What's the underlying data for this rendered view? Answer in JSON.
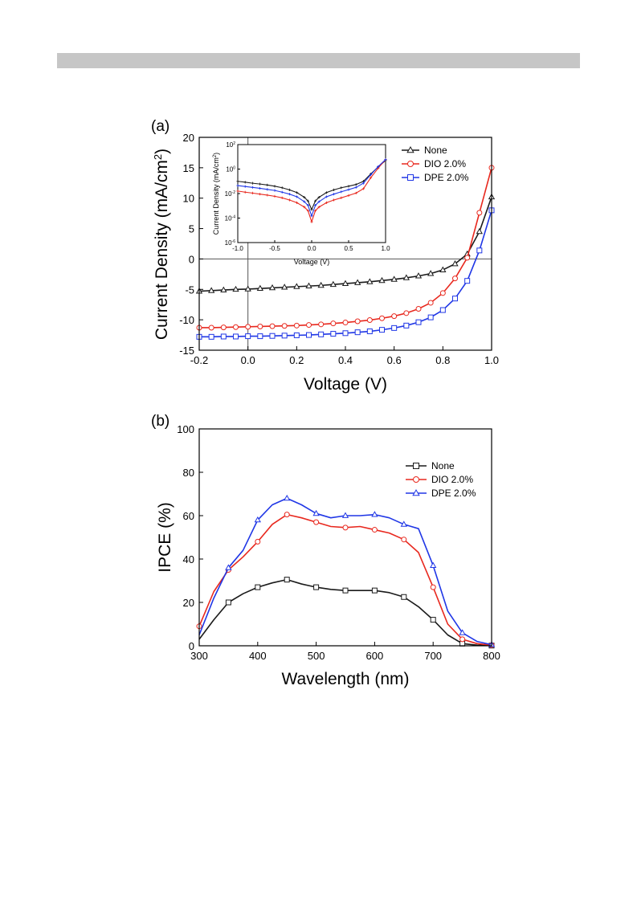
{
  "chart_data": [
    {
      "panel_label": "(a)",
      "type": "line",
      "xlabel": "Voltage (V)",
      "ylabel": "Current Density (mA/cm",
      "ylabel_sup": "2",
      "ylabel_end": ")",
      "xlim": [
        -0.2,
        1.0
      ],
      "ylim": [
        -15,
        20
      ],
      "xticks": [
        -0.2,
        0.0,
        0.2,
        0.4,
        0.6,
        0.8,
        1.0
      ],
      "xtick_labels": [
        "-0.2",
        "0.0",
        "0.2",
        "0.4",
        "0.6",
        "0.8",
        "1.0"
      ],
      "yticks": [
        -15,
        -10,
        -5,
        0,
        5,
        10,
        15,
        20
      ],
      "ytick_labels": [
        "-15",
        "-10",
        "-5",
        "0",
        "5",
        "10",
        "15",
        "20"
      ],
      "reference_lines": {
        "y": 0,
        "x": 0
      },
      "legend_position": "top-right",
      "series": [
        {
          "name": "None",
          "color": "#1a1a1a",
          "marker": "triangle",
          "x": [
            -0.2,
            -0.15,
            -0.1,
            -0.05,
            0,
            0.05,
            0.1,
            0.15,
            0.2,
            0.25,
            0.3,
            0.35,
            0.4,
            0.45,
            0.5,
            0.55,
            0.6,
            0.65,
            0.7,
            0.75,
            0.8,
            0.85,
            0.9,
            0.95,
            1.0
          ],
          "y": [
            -5.3,
            -5.2,
            -5.1,
            -5.0,
            -4.95,
            -4.85,
            -4.75,
            -4.65,
            -4.55,
            -4.45,
            -4.35,
            -4.2,
            -4.05,
            -3.9,
            -3.75,
            -3.55,
            -3.35,
            -3.1,
            -2.8,
            -2.4,
            -1.8,
            -0.8,
            0.8,
            4.5,
            10.2
          ]
        },
        {
          "name": "DIO 2.0%",
          "color": "#e8281e",
          "marker": "circle",
          "x": [
            -0.2,
            -0.15,
            -0.1,
            -0.05,
            0,
            0.05,
            0.1,
            0.15,
            0.2,
            0.25,
            0.3,
            0.35,
            0.4,
            0.45,
            0.5,
            0.55,
            0.6,
            0.65,
            0.7,
            0.75,
            0.8,
            0.85,
            0.9,
            0.95,
            1.0
          ],
          "y": [
            -11.3,
            -11.3,
            -11.25,
            -11.2,
            -11.15,
            -11.1,
            -11.05,
            -11.0,
            -10.95,
            -10.85,
            -10.75,
            -10.6,
            -10.45,
            -10.25,
            -10.05,
            -9.75,
            -9.4,
            -8.9,
            -8.2,
            -7.2,
            -5.6,
            -3.2,
            0.2,
            7.6,
            15.0
          ]
        },
        {
          "name": "DPE 2.0%",
          "color": "#2037e6",
          "marker": "square",
          "x": [
            -0.2,
            -0.15,
            -0.1,
            -0.05,
            0,
            0.05,
            0.1,
            0.15,
            0.2,
            0.25,
            0.3,
            0.35,
            0.4,
            0.45,
            0.5,
            0.55,
            0.6,
            0.65,
            0.7,
            0.75,
            0.8,
            0.85,
            0.9,
            0.95,
            1.0
          ],
          "y": [
            -12.8,
            -12.8,
            -12.75,
            -12.75,
            -12.7,
            -12.7,
            -12.65,
            -12.6,
            -12.55,
            -12.5,
            -12.4,
            -12.3,
            -12.2,
            -12.05,
            -11.9,
            -11.65,
            -11.35,
            -10.95,
            -10.4,
            -9.6,
            -8.4,
            -6.5,
            -3.6,
            1.4,
            8.0
          ]
        }
      ],
      "inset": {
        "type": "line",
        "yscale": "log",
        "xlabel": "Voltage (V)",
        "ylabel": "Current Density (mA/cm",
        "ylabel_sup": "2",
        "ylabel_end": ")",
        "xlim": [
          -1.0,
          1.0
        ],
        "ylim": [
          1e-06,
          100
        ],
        "xticks": [
          -1.0,
          -0.5,
          0.0,
          0.5,
          1.0
        ],
        "xtick_labels": [
          "-1.0",
          "-0.5",
          "0.0",
          "0.5",
          "1.0"
        ],
        "ytick_base": "10",
        "ytick_exponents": [
          "-6",
          "-4",
          "-2",
          "0",
          "2"
        ],
        "series": [
          {
            "name": "None",
            "color": "#1a1a1a",
            "x": [
              -1.0,
              -0.9,
              -0.8,
              -0.7,
              -0.6,
              -0.5,
              -0.4,
              -0.3,
              -0.2,
              -0.1,
              -0.05,
              0,
              0.05,
              0.1,
              0.2,
              0.3,
              0.4,
              0.5,
              0.6,
              0.7,
              0.8,
              0.9,
              1.0
            ],
            "y": [
              0.1,
              0.085,
              0.07,
              0.06,
              0.05,
              0.04,
              0.03,
              0.02,
              0.012,
              0.005,
              0.0025,
              0.0005,
              0.0025,
              0.005,
              0.012,
              0.02,
              0.03,
              0.04,
              0.055,
              0.1,
              0.4,
              1.5,
              5
            ]
          },
          {
            "name": "DIO 2.0%",
            "color": "#e8281e",
            "x": [
              -1.0,
              -0.9,
              -0.8,
              -0.7,
              -0.6,
              -0.5,
              -0.4,
              -0.3,
              -0.2,
              -0.1,
              -0.05,
              0,
              0.05,
              0.1,
              0.2,
              0.3,
              0.4,
              0.5,
              0.6,
              0.7,
              0.8,
              0.9,
              1.0
            ],
            "y": [
              0.016,
              0.013,
              0.011,
              0.009,
              0.0075,
              0.006,
              0.0045,
              0.003,
              0.0018,
              0.0008,
              0.0004,
              5e-05,
              0.0004,
              0.0008,
              0.0018,
              0.003,
              0.0045,
              0.007,
              0.011,
              0.025,
              0.2,
              1.2,
              6
            ]
          },
          {
            "name": "DPE 2.0%",
            "color": "#2037e6",
            "x": [
              -1.0,
              -0.9,
              -0.8,
              -0.7,
              -0.6,
              -0.5,
              -0.4,
              -0.3,
              -0.2,
              -0.1,
              -0.05,
              0,
              0.05,
              0.1,
              0.2,
              0.3,
              0.4,
              0.5,
              0.6,
              0.7,
              0.8,
              0.9,
              1.0
            ],
            "y": [
              0.045,
              0.038,
              0.032,
              0.027,
              0.022,
              0.018,
              0.013,
              0.009,
              0.0055,
              0.0022,
              0.0011,
              0.00015,
              0.0011,
              0.0022,
              0.0055,
              0.009,
              0.014,
              0.021,
              0.032,
              0.07,
              0.35,
              1.6,
              6
            ]
          }
        ]
      }
    },
    {
      "panel_label": "(b)",
      "type": "line",
      "xlabel": "Wavelength (nm)",
      "ylabel": "IPCE (%)",
      "xlim": [
        300,
        800
      ],
      "ylim": [
        0,
        100
      ],
      "xticks": [
        300,
        400,
        500,
        600,
        700,
        800
      ],
      "xtick_labels": [
        "300",
        "400",
        "500",
        "600",
        "700",
        "800"
      ],
      "yticks": [
        0,
        20,
        40,
        60,
        80,
        100
      ],
      "ytick_labels": [
        "0",
        "20",
        "40",
        "60",
        "80",
        "100"
      ],
      "legend_position": "right",
      "series": [
        {
          "name": "None",
          "color": "#1a1a1a",
          "marker": "square",
          "x": [
            300,
            325,
            350,
            375,
            400,
            425,
            450,
            475,
            500,
            525,
            550,
            575,
            600,
            625,
            650,
            675,
            700,
            725,
            750,
            775,
            800
          ],
          "y": [
            3,
            12,
            20,
            24,
            27,
            29,
            30.5,
            28.5,
            27,
            26,
            25.5,
            25.5,
            25.5,
            24.5,
            22.5,
            18,
            12,
            5,
            1,
            0.3,
            0.1
          ],
          "marker_x": [
            350,
            400,
            450,
            500,
            550,
            600,
            650,
            700,
            750,
            800
          ],
          "marker_y": [
            20,
            27,
            30.5,
            27,
            25.5,
            25.5,
            22.5,
            12,
            1,
            0.1
          ]
        },
        {
          "name": "DIO 2.0%",
          "color": "#e8281e",
          "marker": "circle",
          "x": [
            300,
            325,
            350,
            375,
            400,
            425,
            450,
            475,
            500,
            525,
            550,
            575,
            600,
            625,
            650,
            675,
            700,
            725,
            750,
            775,
            800
          ],
          "y": [
            9,
            25,
            35,
            41,
            48,
            56,
            60.5,
            59,
            57,
            55,
            54.5,
            55,
            53.5,
            52,
            49,
            43,
            27,
            10,
            3,
            1,
            0.3
          ],
          "marker_x": [
            300,
            350,
            400,
            450,
            500,
            550,
            600,
            650,
            700,
            750,
            800
          ],
          "marker_y": [
            9,
            35,
            48,
            60.5,
            57,
            54.5,
            53.5,
            49,
            27,
            3,
            0.3
          ]
        },
        {
          "name": "DPE 2.0%",
          "color": "#2037e6",
          "marker": "triangle",
          "x": [
            300,
            325,
            350,
            375,
            400,
            425,
            450,
            475,
            500,
            525,
            550,
            575,
            600,
            625,
            650,
            675,
            700,
            725,
            750,
            775,
            800
          ],
          "y": [
            5,
            22,
            36,
            44,
            58,
            65,
            68,
            65,
            61,
            59,
            60,
            60,
            60.5,
            59,
            56,
            54,
            37,
            16,
            6,
            2,
            0.5
          ],
          "marker_x": [
            350,
            400,
            450,
            500,
            550,
            600,
            650,
            700,
            750,
            800
          ],
          "marker_y": [
            36,
            58,
            68,
            61,
            60,
            60.5,
            56,
            37,
            6,
            0.5
          ]
        }
      ]
    }
  ]
}
